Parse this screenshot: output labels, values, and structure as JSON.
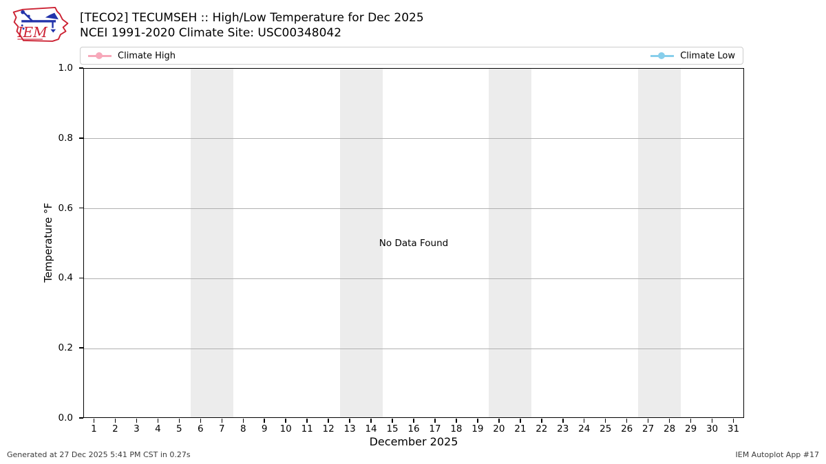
{
  "header": {
    "title_line1": "[TECO2] TECUMSEH :: High/Low Temperature for Dec 2025",
    "title_line2": "NCEI 1991-2020 Climate Site: USC00348042",
    "logo_text": "IEM"
  },
  "legend": {
    "high_label": "Climate High",
    "low_label": "Climate Low"
  },
  "chart_data": {
    "type": "line",
    "title": "[TECO2] TECUMSEH :: High/Low Temperature for Dec 2025",
    "subtitle": "NCEI 1991-2020 Climate Site: USC00348042",
    "xlabel": "December 2025",
    "ylabel": "Temperature °F",
    "ylim": [
      0.0,
      1.0
    ],
    "yticks": [
      "0.0",
      "0.2",
      "0.4",
      "0.6",
      "0.8",
      "1.0"
    ],
    "xticks": [
      "1",
      "2",
      "3",
      "4",
      "5",
      "6",
      "7",
      "8",
      "9",
      "10",
      "11",
      "12",
      "13",
      "14",
      "15",
      "16",
      "17",
      "18",
      "19",
      "20",
      "21",
      "22",
      "23",
      "24",
      "25",
      "26",
      "27",
      "28",
      "29",
      "30",
      "31"
    ],
    "series": [
      {
        "name": "Climate High",
        "color": "#f7a8ba",
        "values": []
      },
      {
        "name": "Climate Low",
        "color": "#87ceeb",
        "values": []
      }
    ],
    "no_data_message": "No Data Found",
    "weekend_bands_days": [
      [
        6,
        7
      ],
      [
        13,
        14
      ],
      [
        20,
        21
      ],
      [
        27,
        28
      ]
    ],
    "band_color": "#ececec",
    "grid_color": "#b0b0b0",
    "grid": true,
    "legend_position": "top"
  },
  "footer": {
    "generated": "Generated at 27 Dec 2025 5:41 PM CST in 0.27s",
    "app": "IEM Autoplot App #17"
  },
  "colors": {
    "logo_red": "#cc2233",
    "logo_blue": "#2233aa",
    "axis": "#000000"
  }
}
